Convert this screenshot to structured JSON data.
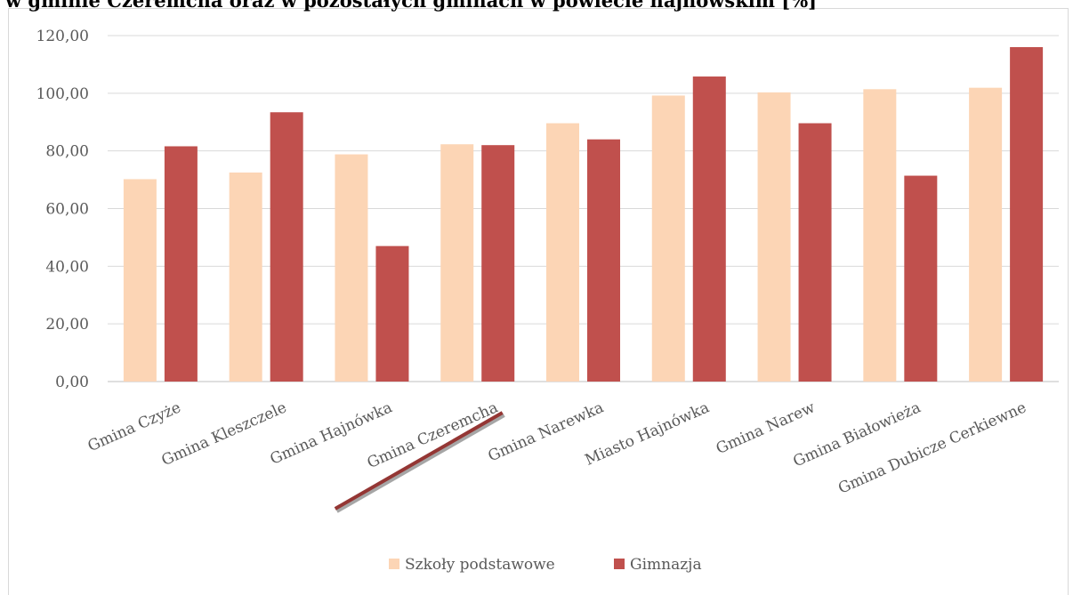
{
  "chart_data": {
    "type": "bar",
    "title": "w gminie Czeremcha oraz w pozostałych gminach w powiecie hajnowskim [%]",
    "xlabel": "",
    "ylabel": "",
    "categories": [
      "Gmina Czyże",
      "Gmina Kleszczele",
      "Gmina Hajnówka",
      "Gmina Czeremcha",
      "Gmina Narewka",
      "Miasto Hajnówka",
      "Gmina Narew",
      "Gmina Białowieża",
      "Gmina Dubicze Cerkiewne"
    ],
    "series": [
      {
        "name": "Szkoły podstawowe",
        "color": "#fcd5b5",
        "values": [
          70.2,
          72.5,
          78.8,
          82.3,
          89.6,
          99.2,
          100.3,
          101.4,
          101.9
        ]
      },
      {
        "name": "Gimnazja",
        "color": "#c0504d",
        "values": [
          81.6,
          93.4,
          47.0,
          82.0,
          84.0,
          105.8,
          89.6,
          71.4,
          116.0
        ]
      }
    ],
    "yticks": [
      "0,00",
      "20,00",
      "40,00",
      "60,00",
      "80,00",
      "100,00",
      "120,00"
    ],
    "ylim": [
      0,
      120
    ],
    "grid": true,
    "legend_position": "bottom",
    "highlighted_category": "Gmina Czeremcha",
    "highlight_color": "#943634"
  }
}
